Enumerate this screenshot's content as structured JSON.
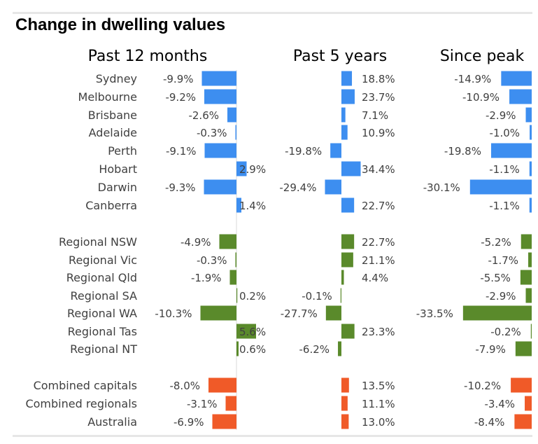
{
  "title": "Change in dwelling values",
  "chart_data": {
    "type": "bar",
    "orientation": "horizontal",
    "title": "Change in dwelling values",
    "panels": [
      "Past 12 months",
      "Past 5 years",
      "Since peak"
    ],
    "categories": [
      "Sydney",
      "Melbourne",
      "Brisbane",
      "Adelaide",
      "Perth",
      "Hobart",
      "Darwin",
      "Canberra",
      "Regional NSW",
      "Regional Vic",
      "Regional Qld",
      "Regional SA",
      "Regional WA",
      "Regional Tas",
      "Regional NT",
      "Combined capitals",
      "Combined regionals",
      "Australia"
    ],
    "groups": [
      {
        "color": "#3d8ef0",
        "rows": [
          "Sydney",
          "Melbourne",
          "Brisbane",
          "Adelaide",
          "Perth",
          "Hobart",
          "Darwin",
          "Canberra"
        ]
      },
      {
        "color": "#5a8a2b",
        "rows": [
          "Regional NSW",
          "Regional Vic",
          "Regional Qld",
          "Regional SA",
          "Regional WA",
          "Regional Tas",
          "Regional NT"
        ]
      },
      {
        "color": "#f05a28",
        "rows": [
          "Combined capitals",
          "Combined regionals",
          "Australia"
        ]
      }
    ],
    "series": [
      {
        "values": [
          -9.9,
          -9.2,
          -2.6,
          -0.3,
          -9.1,
          2.9,
          -9.3,
          1.4,
          -4.9,
          -0.3,
          -1.9,
          0.2,
          -10.3,
          5.6,
          0.6,
          -8.0,
          -3.1,
          -6.9
        ]
      },
      {
        "values": [
          18.8,
          23.7,
          7.1,
          10.9,
          -19.8,
          34.4,
          -29.4,
          22.7,
          22.7,
          21.1,
          4.4,
          -0.1,
          -27.7,
          23.3,
          -6.2,
          13.5,
          11.1,
          13.0
        ]
      },
      {
        "values": [
          -14.9,
          -10.9,
          -2.9,
          -1.0,
          -19.8,
          -1.1,
          -30.1,
          -1.1,
          -5.2,
          -1.7,
          -5.5,
          -2.9,
          -33.5,
          -0.2,
          -7.9,
          -10.2,
          -3.4,
          -8.4
        ]
      }
    ],
    "value_format": "%",
    "grid": false,
    "legend": "none"
  }
}
